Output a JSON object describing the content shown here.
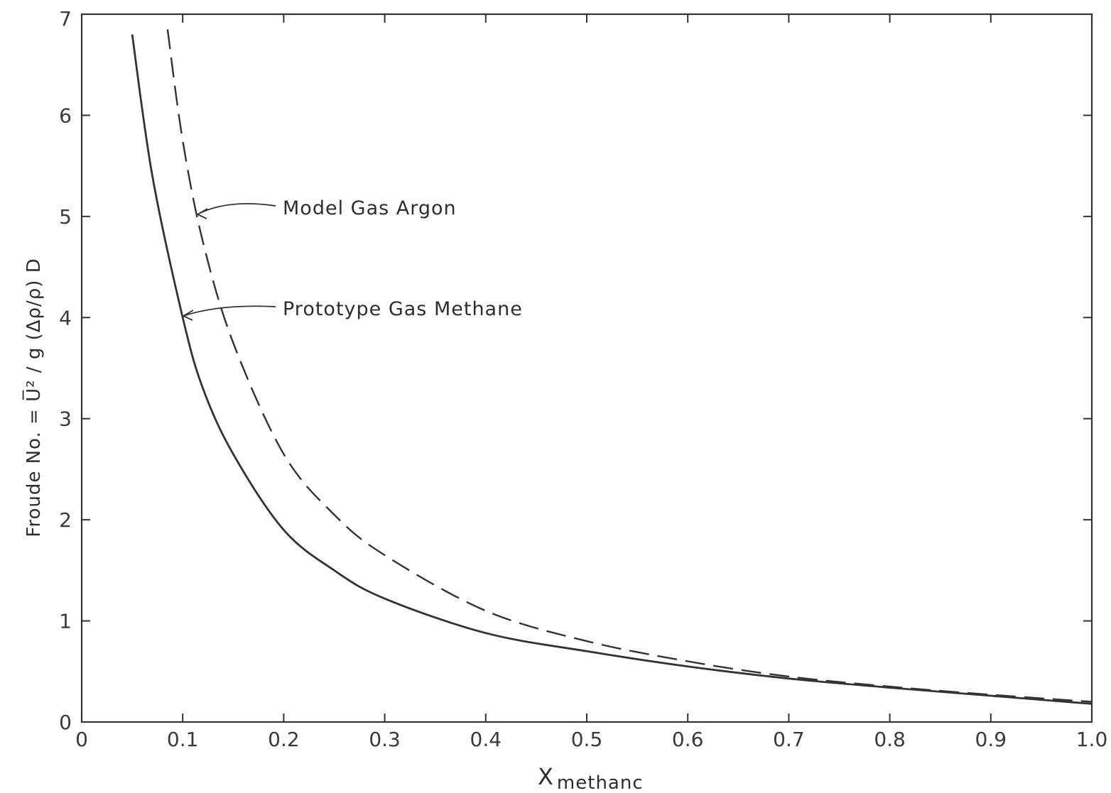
{
  "chart_data": {
    "type": "line",
    "title": "",
    "xlabel": "X",
    "xlabel_sub": "methanc",
    "ylabel": "Froude No. = U̅² / g (Δρ/ρ) D",
    "xlim": [
      0,
      1.0
    ],
    "ylim": [
      0,
      7
    ],
    "grid": false,
    "x_ticks": [
      "0",
      "0.1",
      "0.2",
      "0.3",
      "0.4",
      "0.5",
      "0.6",
      "0.7",
      "0.8",
      "0.9",
      "1.0"
    ],
    "y_ticks": [
      "0",
      "1",
      "2",
      "3",
      "4",
      "5",
      "6",
      "7"
    ],
    "series": [
      {
        "name": "Model Gas Argon",
        "style": "dashed",
        "x": [
          0.085,
          0.1,
          0.12,
          0.15,
          0.2,
          0.25,
          0.3,
          0.4,
          0.5,
          0.6,
          0.7,
          0.8,
          0.9,
          1.0
        ],
        "y": [
          6.85,
          5.75,
          4.75,
          3.75,
          2.65,
          2.05,
          1.65,
          1.1,
          0.8,
          0.6,
          0.45,
          0.35,
          0.27,
          0.2
        ]
      },
      {
        "name": "Prototype Gas Methane",
        "style": "solid",
        "x": [
          0.05,
          0.07,
          0.1,
          0.12,
          0.15,
          0.2,
          0.25,
          0.3,
          0.4,
          0.5,
          0.6,
          0.7,
          0.8,
          0.9,
          1.0
        ],
        "y": [
          6.8,
          5.4,
          4.0,
          3.3,
          2.65,
          1.9,
          1.5,
          1.22,
          0.88,
          0.7,
          0.55,
          0.43,
          0.34,
          0.26,
          0.18
        ]
      }
    ],
    "annotations": [
      {
        "text": "Model Gas Argon",
        "series": 0
      },
      {
        "text": "Prototype Gas Methane",
        "series": 1
      }
    ]
  }
}
